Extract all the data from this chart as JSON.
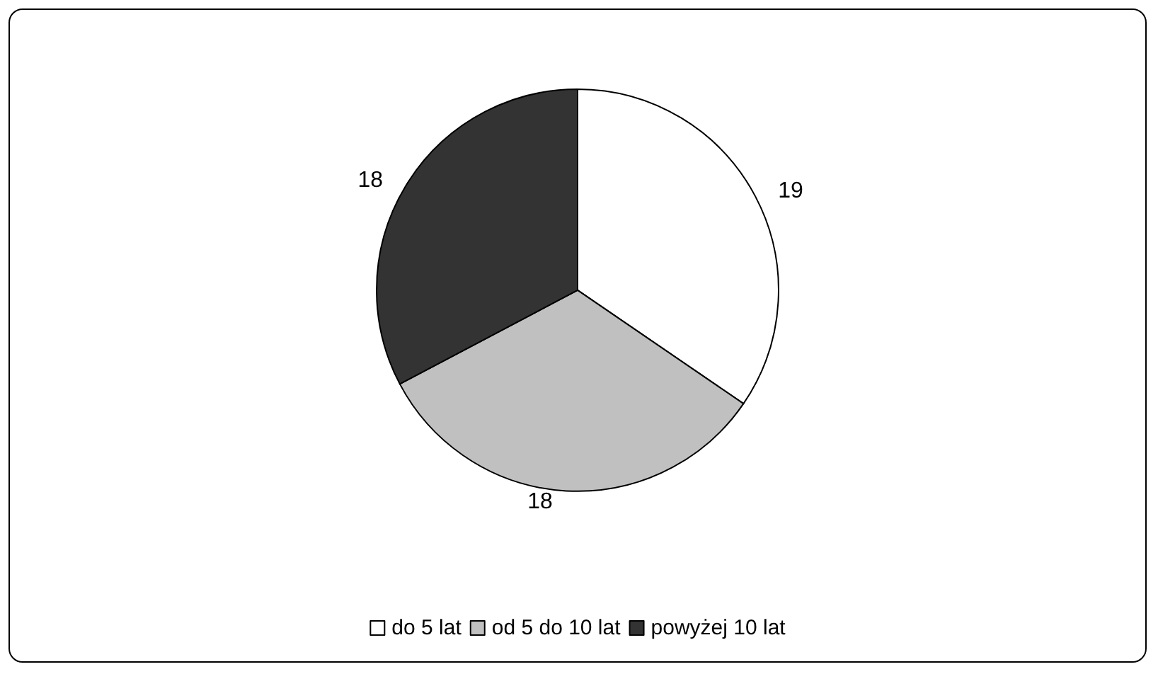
{
  "chart_data": {
    "type": "pie",
    "categories": [
      "do 5 lat",
      "od 5 do 10 lat",
      "powyżej 10 lat"
    ],
    "values": [
      19,
      18,
      18
    ],
    "colors": [
      "#ffffff",
      "#c0c0c0",
      "#333333"
    ],
    "data_labels": true,
    "legend": "bottom"
  }
}
